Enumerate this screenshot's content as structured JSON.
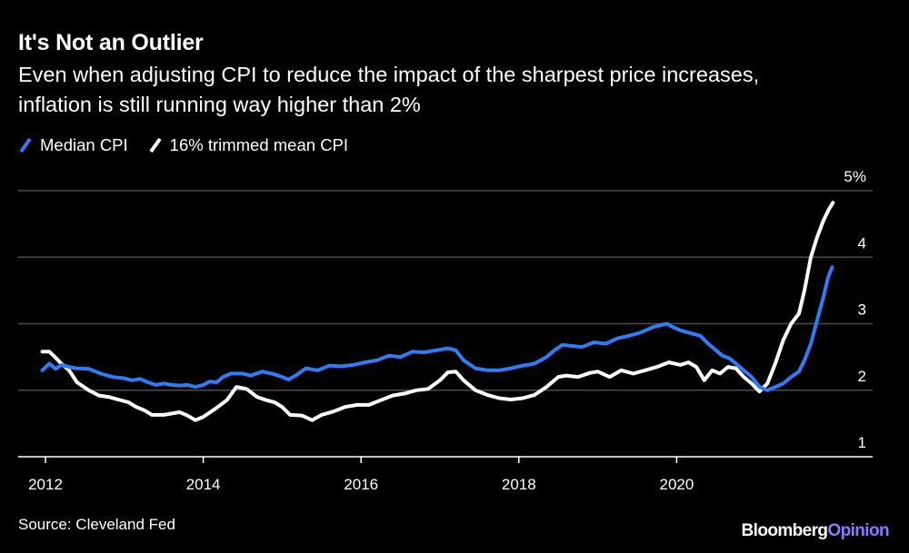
{
  "title": "It's Not an Outlier",
  "subtitle": "Even when adjusting CPI to reduce the impact of the sharpest price increases, inflation is still running way higher than 2%",
  "source": "Source: Cleveland Fed",
  "brand": {
    "part1": "Bloomberg",
    "part2": "Opinion"
  },
  "colors": {
    "median": "#2f7cf6",
    "trimmed": "#ffffff",
    "grid": "#4d4d4d",
    "background": "#000000"
  },
  "chart_data": {
    "type": "line",
    "title": "It's Not an Outlier",
    "xlabel": "",
    "ylabel": "",
    "xlim": [
      2011.96,
      2021.98
    ],
    "ylim": [
      1,
      5
    ],
    "x_ticks": [
      2012,
      2014,
      2016,
      2018,
      2020
    ],
    "x_tick_labels": [
      "2012",
      "2014",
      "2016",
      "2018",
      "2020"
    ],
    "y_ticks": [
      1,
      2,
      3,
      4,
      5
    ],
    "y_tick_labels": [
      "1",
      "2",
      "3",
      "4",
      "5%"
    ],
    "legend_position": "top-left",
    "series": [
      {
        "name": "Median CPI",
        "color": "#2f7cf6",
        "points": [
          [
            2011.96,
            2.3
          ],
          [
            2012.05,
            2.4
          ],
          [
            2012.13,
            2.32
          ],
          [
            2012.2,
            2.38
          ],
          [
            2012.3,
            2.35
          ],
          [
            2012.4,
            2.33
          ],
          [
            2012.55,
            2.32
          ],
          [
            2012.7,
            2.25
          ],
          [
            2012.85,
            2.2
          ],
          [
            2013.0,
            2.18
          ],
          [
            2013.1,
            2.15
          ],
          [
            2013.2,
            2.17
          ],
          [
            2013.3,
            2.12
          ],
          [
            2013.4,
            2.08
          ],
          [
            2013.5,
            2.1
          ],
          [
            2013.6,
            2.08
          ],
          [
            2013.7,
            2.07
          ],
          [
            2013.8,
            2.08
          ],
          [
            2013.9,
            2.05
          ],
          [
            2014.0,
            2.08
          ],
          [
            2014.08,
            2.13
          ],
          [
            2014.17,
            2.12
          ],
          [
            2014.25,
            2.2
          ],
          [
            2014.35,
            2.25
          ],
          [
            2014.5,
            2.25
          ],
          [
            2014.6,
            2.22
          ],
          [
            2014.75,
            2.28
          ],
          [
            2014.9,
            2.24
          ],
          [
            2015.0,
            2.2
          ],
          [
            2015.08,
            2.16
          ],
          [
            2015.17,
            2.22
          ],
          [
            2015.3,
            2.33
          ],
          [
            2015.45,
            2.3
          ],
          [
            2015.6,
            2.37
          ],
          [
            2015.75,
            2.36
          ],
          [
            2015.9,
            2.38
          ],
          [
            2016.05,
            2.42
          ],
          [
            2016.2,
            2.45
          ],
          [
            2016.35,
            2.52
          ],
          [
            2016.5,
            2.5
          ],
          [
            2016.65,
            2.58
          ],
          [
            2016.8,
            2.57
          ],
          [
            2016.95,
            2.6
          ],
          [
            2017.1,
            2.63
          ],
          [
            2017.2,
            2.6
          ],
          [
            2017.3,
            2.45
          ],
          [
            2017.45,
            2.33
          ],
          [
            2017.6,
            2.3
          ],
          [
            2017.75,
            2.3
          ],
          [
            2017.9,
            2.33
          ],
          [
            2018.05,
            2.37
          ],
          [
            2018.2,
            2.4
          ],
          [
            2018.35,
            2.5
          ],
          [
            2018.45,
            2.6
          ],
          [
            2018.55,
            2.68
          ],
          [
            2018.65,
            2.67
          ],
          [
            2018.8,
            2.65
          ],
          [
            2018.95,
            2.72
          ],
          [
            2019.1,
            2.7
          ],
          [
            2019.25,
            2.78
          ],
          [
            2019.4,
            2.82
          ],
          [
            2019.55,
            2.87
          ],
          [
            2019.7,
            2.95
          ],
          [
            2019.8,
            2.98
          ],
          [
            2019.88,
            3.0
          ],
          [
            2019.95,
            2.95
          ],
          [
            2020.05,
            2.9
          ],
          [
            2020.2,
            2.85
          ],
          [
            2020.3,
            2.82
          ],
          [
            2020.4,
            2.7
          ],
          [
            2020.5,
            2.6
          ],
          [
            2020.58,
            2.52
          ],
          [
            2020.67,
            2.48
          ],
          [
            2020.75,
            2.4
          ],
          [
            2020.85,
            2.3
          ],
          [
            2020.95,
            2.2
          ],
          [
            2021.05,
            2.05
          ],
          [
            2021.15,
            2.0
          ],
          [
            2021.25,
            2.05
          ],
          [
            2021.35,
            2.1
          ],
          [
            2021.45,
            2.2
          ],
          [
            2021.55,
            2.28
          ],
          [
            2021.62,
            2.45
          ],
          [
            2021.7,
            2.7
          ],
          [
            2021.78,
            3.05
          ],
          [
            2021.86,
            3.4
          ],
          [
            2021.92,
            3.7
          ],
          [
            2021.97,
            3.85
          ]
        ]
      },
      {
        "name": "16% trimmed mean CPI",
        "color": "#ffffff",
        "points": [
          [
            2011.96,
            2.58
          ],
          [
            2012.05,
            2.58
          ],
          [
            2012.12,
            2.5
          ],
          [
            2012.2,
            2.4
          ],
          [
            2012.3,
            2.3
          ],
          [
            2012.4,
            2.12
          ],
          [
            2012.55,
            2.0
          ],
          [
            2012.68,
            1.92
          ],
          [
            2012.8,
            1.9
          ],
          [
            2012.92,
            1.86
          ],
          [
            2013.05,
            1.82
          ],
          [
            2013.15,
            1.75
          ],
          [
            2013.25,
            1.7
          ],
          [
            2013.35,
            1.63
          ],
          [
            2013.5,
            1.63
          ],
          [
            2013.6,
            1.65
          ],
          [
            2013.7,
            1.67
          ],
          [
            2013.8,
            1.62
          ],
          [
            2013.9,
            1.55
          ],
          [
            2014.0,
            1.6
          ],
          [
            2014.15,
            1.72
          ],
          [
            2014.3,
            1.85
          ],
          [
            2014.42,
            2.05
          ],
          [
            2014.55,
            2.02
          ],
          [
            2014.68,
            1.9
          ],
          [
            2014.8,
            1.85
          ],
          [
            2014.9,
            1.82
          ],
          [
            2015.0,
            1.75
          ],
          [
            2015.1,
            1.63
          ],
          [
            2015.25,
            1.62
          ],
          [
            2015.38,
            1.55
          ],
          [
            2015.5,
            1.63
          ],
          [
            2015.65,
            1.68
          ],
          [
            2015.8,
            1.75
          ],
          [
            2015.95,
            1.78
          ],
          [
            2016.1,
            1.78
          ],
          [
            2016.25,
            1.85
          ],
          [
            2016.4,
            1.92
          ],
          [
            2016.55,
            1.95
          ],
          [
            2016.7,
            2.0
          ],
          [
            2016.85,
            2.02
          ],
          [
            2017.0,
            2.15
          ],
          [
            2017.1,
            2.27
          ],
          [
            2017.2,
            2.28
          ],
          [
            2017.3,
            2.15
          ],
          [
            2017.45,
            2.0
          ],
          [
            2017.6,
            1.93
          ],
          [
            2017.75,
            1.88
          ],
          [
            2017.9,
            1.86
          ],
          [
            2018.05,
            1.88
          ],
          [
            2018.2,
            1.93
          ],
          [
            2018.35,
            2.05
          ],
          [
            2018.5,
            2.2
          ],
          [
            2018.6,
            2.22
          ],
          [
            2018.75,
            2.2
          ],
          [
            2018.9,
            2.26
          ],
          [
            2019.0,
            2.28
          ],
          [
            2019.15,
            2.2
          ],
          [
            2019.3,
            2.3
          ],
          [
            2019.45,
            2.25
          ],
          [
            2019.6,
            2.3
          ],
          [
            2019.75,
            2.35
          ],
          [
            2019.9,
            2.42
          ],
          [
            2020.05,
            2.38
          ],
          [
            2020.15,
            2.42
          ],
          [
            2020.25,
            2.35
          ],
          [
            2020.35,
            2.15
          ],
          [
            2020.45,
            2.3
          ],
          [
            2020.55,
            2.25
          ],
          [
            2020.65,
            2.35
          ],
          [
            2020.75,
            2.33
          ],
          [
            2020.85,
            2.2
          ],
          [
            2020.95,
            2.1
          ],
          [
            2021.05,
            1.98
          ],
          [
            2021.15,
            2.1
          ],
          [
            2021.25,
            2.4
          ],
          [
            2021.35,
            2.75
          ],
          [
            2021.45,
            3.0
          ],
          [
            2021.55,
            3.15
          ],
          [
            2021.62,
            3.5
          ],
          [
            2021.7,
            4.0
          ],
          [
            2021.78,
            4.3
          ],
          [
            2021.86,
            4.55
          ],
          [
            2021.93,
            4.72
          ],
          [
            2021.98,
            4.82
          ]
        ]
      }
    ]
  }
}
